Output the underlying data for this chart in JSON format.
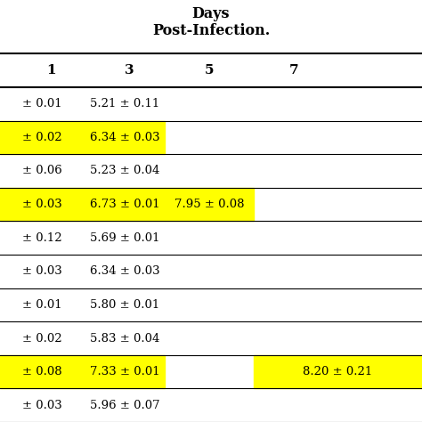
{
  "title": "Days\nPost-Infection.",
  "col_headers": [
    "1",
    "3",
    "5",
    "7"
  ],
  "rows": [
    {
      "col1": "± 0.01",
      "col2": "5.21 ± 0.11",
      "col3": "",
      "col4": "",
      "highlight": [
        false,
        false,
        false,
        false
      ]
    },
    {
      "col1": "± 0.02",
      "col2": "6.34 ± 0.03",
      "col3": "",
      "col4": "",
      "highlight": [
        true,
        true,
        false,
        true
      ]
    },
    {
      "col1": "± 0.06",
      "col2": "5.23 ± 0.04",
      "col3": "",
      "col4": "",
      "highlight": [
        false,
        false,
        false,
        false
      ]
    },
    {
      "col1": "± 0.03",
      "col2": "6.73 ± 0.01",
      "col3": "7.95 ± 0.08",
      "col4": "",
      "highlight": [
        true,
        true,
        true,
        false
      ]
    },
    {
      "col1": "± 0.12",
      "col2": "5.69 ± 0.01",
      "col3": "",
      "col4": "",
      "highlight": [
        false,
        false,
        false,
        false
      ]
    },
    {
      "col1": "± 0.03",
      "col2": "6.34 ± 0.03",
      "col3": "",
      "col4": "",
      "highlight": [
        false,
        false,
        false,
        false
      ]
    },
    {
      "col1": "± 0.01",
      "col2": "5.80 ± 0.01",
      "col3": "",
      "col4": "",
      "highlight": [
        false,
        false,
        false,
        false
      ]
    },
    {
      "col1": "± 0.02",
      "col2": "5.83 ± 0.04",
      "col3": "",
      "col4": "",
      "highlight": [
        false,
        false,
        false,
        false
      ]
    },
    {
      "col1": "± 0.08",
      "col2": "7.33 ± 0.01",
      "col3": "",
      "col4": "8.20 ± 0.21",
      "highlight": [
        true,
        true,
        false,
        true
      ]
    },
    {
      "col1": "± 0.03",
      "col2": "5.96 ± 0.07",
      "col3": "",
      "col4": "",
      "highlight": [
        false,
        false,
        false,
        false
      ]
    }
  ],
  "highlight_color": "#FFFF00",
  "background_color": "#FFFFFF",
  "text_color": "#000000",
  "font_size": 9.5,
  "header_font_size": 11
}
